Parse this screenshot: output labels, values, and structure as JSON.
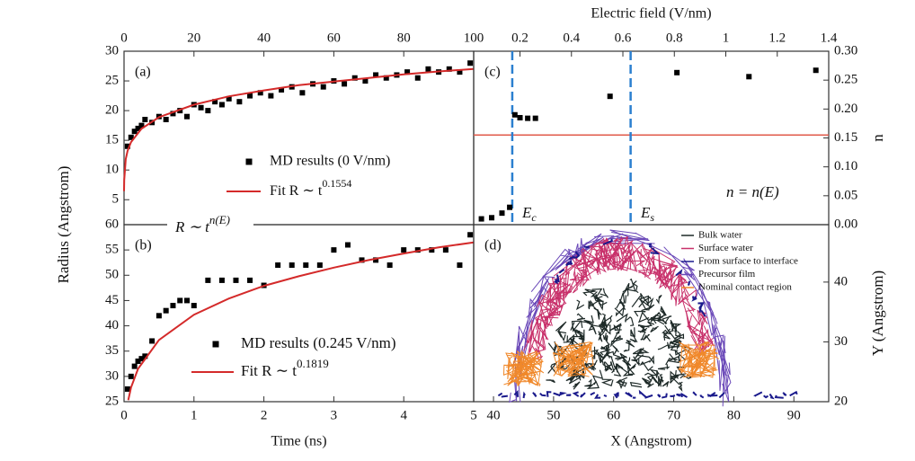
{
  "chart_data": [
    {
      "type": "scatter",
      "panel_label": "(a)",
      "ylabel": "Radius (Angstrom)",
      "xlim": [
        0,
        100
      ],
      "xticks": [
        0,
        20,
        40,
        60,
        80,
        100
      ],
      "ylim": [
        0.8,
        30
      ],
      "yticks": [
        5,
        10,
        15,
        20,
        25,
        30
      ],
      "annotation": {
        "text": "R ∼ t",
        "sup": "n(E)"
      },
      "series": [
        {
          "name": "MD results (0 V/nm)",
          "color": "#000000",
          "style": "markers",
          "x": [
            1,
            2,
            3,
            4,
            5,
            6,
            8,
            10,
            12,
            14,
            16,
            18,
            20,
            22,
            24,
            26,
            28,
            30,
            33,
            36,
            39,
            42,
            45,
            48,
            51,
            54,
            57,
            60,
            63,
            66,
            69,
            72,
            75,
            78,
            81,
            84,
            87,
            90,
            93,
            96,
            99
          ],
          "values": [
            14,
            15.5,
            16.5,
            17,
            17.5,
            18.5,
            18,
            19,
            18.5,
            19.5,
            20,
            19,
            21,
            20.5,
            20,
            21.5,
            21,
            22,
            21.5,
            22.5,
            23,
            22.5,
            23.5,
            24,
            23,
            24.5,
            24,
            25,
            24.5,
            25.5,
            25,
            26,
            25.5,
            26,
            26.5,
            25.5,
            27,
            26.5,
            27,
            26.5,
            28
          ]
        },
        {
          "name": "Fit R ∼ t",
          "exponent": 0.1554,
          "color": "#d42a2a",
          "style": "line",
          "x": [
            0.01,
            0.05,
            0.5,
            1,
            2,
            5,
            10,
            20,
            30,
            40,
            50,
            60,
            70,
            80,
            90,
            100
          ],
          "values": [
            6.45,
            8.3,
            11.85,
            13.2,
            14.7,
            16.95,
            18.9,
            21.0,
            22.4,
            23.4,
            24.3,
            24.9,
            25.5,
            26.1,
            26.6,
            27.0
          ]
        }
      ]
    },
    {
      "type": "scatter",
      "panel_label": "(b)",
      "xlabel": "Time (ns)",
      "xlim": [
        0,
        5
      ],
      "xticks": [
        0,
        1,
        2,
        3,
        4,
        5
      ],
      "ylim": [
        25,
        60
      ],
      "yticks": [
        25,
        30,
        35,
        40,
        45,
        50,
        55,
        60
      ],
      "series": [
        {
          "name": "MD results (0.245 V/nm)",
          "color": "#000000",
          "style": "markers",
          "x": [
            0.05,
            0.1,
            0.15,
            0.2,
            0.25,
            0.3,
            0.4,
            0.5,
            0.6,
            0.7,
            0.8,
            0.9,
            1.0,
            1.2,
            1.4,
            1.6,
            1.8,
            2.0,
            2.2,
            2.4,
            2.6,
            2.8,
            3.0,
            3.2,
            3.4,
            3.6,
            3.8,
            4.0,
            4.2,
            4.4,
            4.6,
            4.8,
            4.95
          ],
          "values": [
            27.5,
            30,
            32,
            33,
            33.5,
            34,
            37,
            42,
            43,
            44,
            45,
            45,
            44,
            49,
            49,
            49,
            49,
            48,
            52,
            52,
            52,
            52,
            55,
            56,
            53,
            53,
            52,
            55,
            55,
            55,
            55,
            52,
            58
          ]
        },
        {
          "name": "Fit R ∼ t",
          "exponent": 0.1819,
          "color": "#d42a2a",
          "style": "line",
          "x": [
            0.06,
            0.1,
            0.2,
            0.5,
            1,
            1.5,
            2,
            2.5,
            3,
            3.5,
            4,
            4.5,
            5
          ],
          "values": [
            25.3,
            27.8,
            31.5,
            37.2,
            42.2,
            45.4,
            47.9,
            49.8,
            51.5,
            53.0,
            54.3,
            55.5,
            56.5
          ]
        }
      ]
    },
    {
      "type": "scatter",
      "panel_label": "(c)",
      "xlabel": "Electric field (V/nm)",
      "ylabel": "n",
      "xlim": [
        0.02,
        1.4
      ],
      "xticks": [
        0.2,
        0.4,
        0.6,
        0.8,
        1,
        1.2,
        1.4
      ],
      "ylim": [
        0,
        0.3
      ],
      "yticks": [
        {
          "value": 0,
          "label": "0.00"
        },
        {
          "value": 0.05,
          "label": "0.05"
        },
        {
          "value": 0.1,
          "label": "0.10"
        },
        {
          "value": 0.15,
          "label": "0.15"
        },
        {
          "value": 0.2,
          "label": "0.20"
        },
        {
          "value": 0.25,
          "label": "0.25"
        },
        {
          "value": 0.3,
          "label": "0.30"
        }
      ],
      "hline": {
        "value": 0.155,
        "color": "#e05a4a"
      },
      "vlines": {
        "values": [
          0.17,
          0.63
        ],
        "color": "#2b7fd0"
      },
      "annotations": [
        {
          "text": "E",
          "sub": "c"
        },
        {
          "text": "E",
          "sub": "s"
        },
        {
          "text": "n = n(E)"
        }
      ],
      "series": [
        {
          "color": "#000000",
          "style": "markers",
          "x": [
            0.05,
            0.09,
            0.13,
            0.16,
            0.18,
            0.2,
            0.23,
            0.26,
            0.55,
            0.81,
            1.09,
            1.35
          ],
          "values": [
            0.01,
            0.012,
            0.02,
            0.03,
            0.19,
            0.185,
            0.184,
            0.184,
            0.222,
            0.263,
            0.256,
            0.267
          ]
        }
      ]
    },
    {
      "type": "trajectory",
      "panel_label": "(d)",
      "xlabel": "X (Angstrom)",
      "ylabel": "Y (Angstrom)",
      "xlim": [
        36.7,
        95.8
      ],
      "xticks": [
        40,
        50,
        60,
        70,
        80,
        90
      ],
      "ylim": [
        20,
        49.6
      ],
      "yticks": [
        20,
        30,
        40
      ],
      "series": [
        {
          "name": "Bulk water",
          "color": "#1e2a28"
        },
        {
          "name": "Surface water",
          "color": "#c8306a"
        },
        {
          "name": "From surface to interface",
          "color": "#1a1a8c"
        },
        {
          "name": "Precursor film",
          "color": "#6a48b8"
        },
        {
          "name": "Nominal contact region",
          "color": "#f0882a"
        }
      ]
    }
  ]
}
